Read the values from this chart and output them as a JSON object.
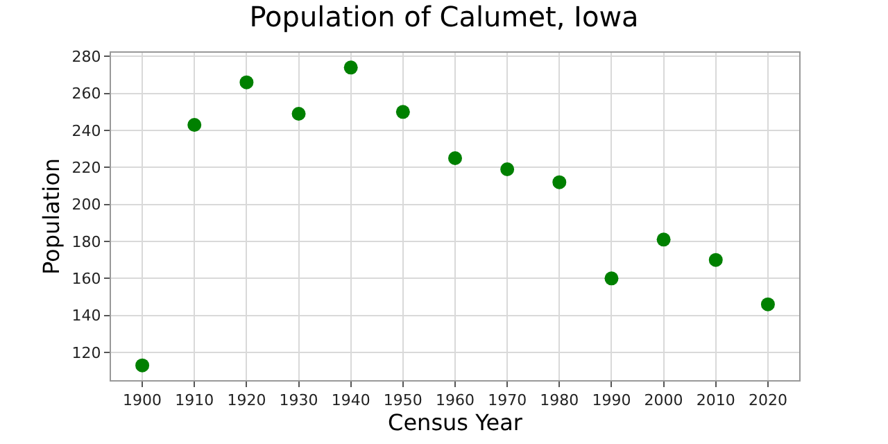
{
  "chart_data": {
    "type": "scatter",
    "title": "Population of Calumet, Iowa",
    "xlabel": "Census Year",
    "ylabel": "Population",
    "x": [
      1900,
      1910,
      1920,
      1930,
      1940,
      1950,
      1960,
      1970,
      1980,
      1990,
      2000,
      2010,
      2020
    ],
    "series": [
      {
        "color": "#008000",
        "values": [
          113,
          243,
          266,
          249,
          274,
          250,
          225,
          219,
          212,
          160,
          181,
          170,
          146
        ]
      }
    ],
    "xlim": [
      1894,
      2026
    ],
    "xticks": [
      1900,
      1910,
      1920,
      1930,
      1940,
      1950,
      1960,
      1970,
      1980,
      1990,
      2000,
      2010,
      2020
    ],
    "ylim": [
      105,
      282
    ],
    "yticks": [
      120,
      140,
      160,
      180,
      200,
      220,
      240,
      260,
      280
    ],
    "grid": true,
    "marker": "circle"
  }
}
